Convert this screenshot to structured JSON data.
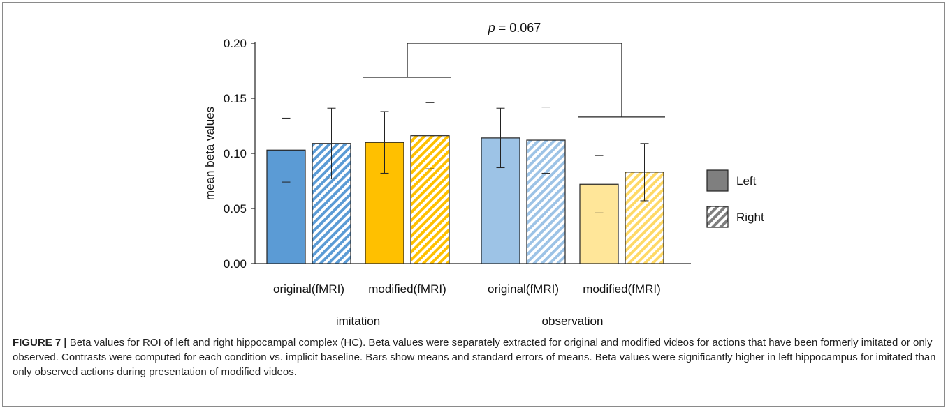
{
  "chart_data": {
    "type": "bar",
    "ylabel": "mean beta values",
    "ylim": [
      0,
      0.2
    ],
    "yticks": [
      "0.00",
      "0.05",
      "0.10",
      "0.15",
      "0.20"
    ],
    "groups": [
      {
        "label": "imitation",
        "subgroups": [
          {
            "label": "original(fMRI)",
            "bars": [
              {
                "hemisphere": "Left",
                "value": 0.103,
                "error": 0.029,
                "color": "#5B9BD5"
              },
              {
                "hemisphere": "Right",
                "value": 0.109,
                "error": 0.032,
                "color": "#5B9BD5"
              }
            ]
          },
          {
            "label": "modified(fMRI)",
            "bars": [
              {
                "hemisphere": "Left",
                "value": 0.11,
                "error": 0.028,
                "color": "#FFC000"
              },
              {
                "hemisphere": "Right",
                "value": 0.116,
                "error": 0.03,
                "color": "#FFC000"
              }
            ]
          }
        ]
      },
      {
        "label": "observation",
        "subgroups": [
          {
            "label": "original(fMRI)",
            "bars": [
              {
                "hemisphere": "Left",
                "value": 0.114,
                "error": 0.027,
                "color": "#9DC3E6"
              },
              {
                "hemisphere": "Right",
                "value": 0.112,
                "error": 0.03,
                "color": "#9DC3E6"
              }
            ]
          },
          {
            "label": "modified(fMRI)",
            "bars": [
              {
                "hemisphere": "Left",
                "value": 0.072,
                "error": 0.026,
                "color": "#FFE699"
              },
              {
                "hemisphere": "Right",
                "value": 0.083,
                "error": 0.026,
                "color": "#FFD966"
              }
            ]
          }
        ]
      }
    ],
    "legend": {
      "placement": "right",
      "entries": [
        {
          "label": "Left",
          "pattern": "solid",
          "color": "#7f7f7f"
        },
        {
          "label": "Right",
          "pattern": "striped",
          "color": "#7f7f7f"
        }
      ]
    },
    "annotation": {
      "p_symbol": "p",
      "text": " = 0.067",
      "left_level": 0.169,
      "right_level": 0.133,
      "top_level": 0.2
    }
  },
  "caption": {
    "label": "FIGURE 7 |",
    "text": " Beta values for ROI of left and right hippocampal complex (HC). Beta values were separately extracted for original and modified videos for actions that have been formerly imitated or only observed. Contrasts were computed for each condition vs. implicit baseline. Bars show means and standard errors of means. Beta values were significantly higher in left hippocampus for imitated than only observed actions during presentation of modified videos."
  }
}
